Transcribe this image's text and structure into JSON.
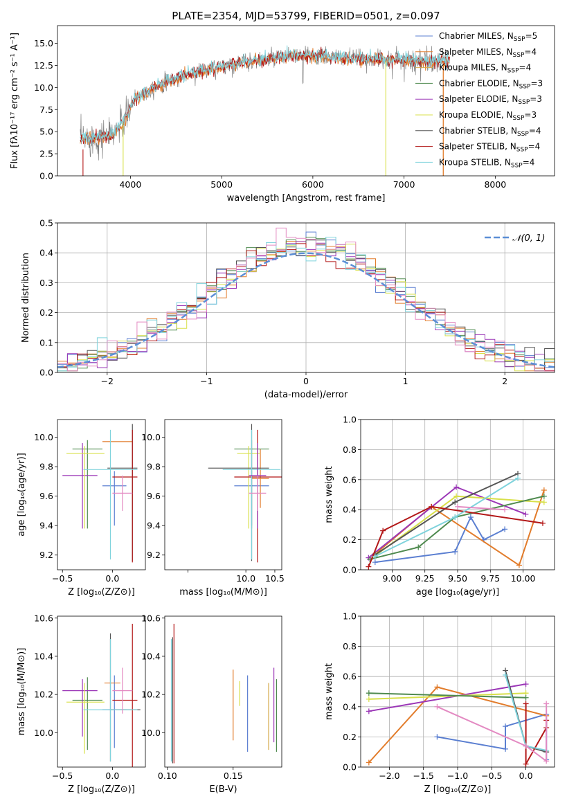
{
  "colors": {
    "Chabrier MILES": "#5b7fd1",
    "Salpeter MILES": "#e27c2b",
    "Kroupa MILES": "#d4a84a",
    "Chabrier ELODIE": "#4f8a4f",
    "Salpeter ELODIE": "#9b37b7",
    "Kroupa ELODIE": "#d8e04a",
    "Chabrier STELIB": "#555555",
    "Salpeter STELIB": "#b31818",
    "Kroupa STELIB": "#7fd3dc",
    "pink": "#e38ac2",
    "normal": "#5b8ed6",
    "grid": "#b0b0b0"
  },
  "chart_data": [
    {
      "id": "spectrum",
      "type": "line",
      "title": "PLATE=2354, MJD=53799, FIBERID=0501, z=0.097",
      "xlabel": "wavelength [Angstrom, rest frame]",
      "ylabel": "Flux [fλ10⁻¹⁷ erg cm⁻² s⁻¹ A⁻¹]",
      "xlim": [
        3200,
        8650
      ],
      "ylim": [
        0,
        17
      ],
      "xticks": [
        4000,
        5000,
        6000,
        7000,
        8000
      ],
      "yticks": [
        0.0,
        2.5,
        5.0,
        7.5,
        10.0,
        12.5,
        15.0
      ],
      "grid": false,
      "legend": "top-right",
      "series": [
        {
          "name": "Chabrier MILES, N_SSP=5"
        },
        {
          "name": "Salpeter MILES, N_SSP=4"
        },
        {
          "name": "Kroupa MILES, N_SSP=4"
        },
        {
          "name": "Chabrier ELODIE, N_SSP=3"
        },
        {
          "name": "Salpeter ELODIE, N_SSP=3"
        },
        {
          "name": "Kroupa ELODIE, N_SSP=3"
        },
        {
          "name": "Chabrier STELIB, N_SSP=4"
        },
        {
          "name": "Salpeter STELIB, N_SSP=4"
        },
        {
          "name": "Kroupa STELIB, N_SSP=4"
        }
      ],
      "continuum": {
        "x": [
          3450,
          3600,
          3800,
          3950,
          4050,
          4300,
          4600,
          4900,
          5200,
          5500,
          5800,
          6100,
          6400,
          6700,
          7000,
          7300,
          7500
        ],
        "y": [
          4.2,
          4.3,
          4.6,
          6.5,
          8.8,
          10.2,
          11.4,
          12.2,
          12.8,
          13.2,
          13.6,
          13.5,
          13.3,
          13.2,
          13.1,
          12.9,
          13.0
        ]
      }
    },
    {
      "id": "residuals",
      "type": "histogram",
      "xlabel": "(data-model)/error",
      "ylabel": "Normed distribution",
      "xlim": [
        -2.5,
        2.5
      ],
      "ylim": [
        0,
        0.5
      ],
      "xticks": [
        -2,
        -1,
        0,
        1,
        2
      ],
      "yticks": [
        0.0,
        0.1,
        0.2,
        0.3,
        0.4,
        0.5
      ],
      "grid": true,
      "legend": "top-right",
      "legend_label": "𝒩(0, 1)",
      "bin_width": 0.1
    },
    {
      "id": "age-vs-Z",
      "type": "errorbar",
      "xlabel": "Z [log₁₀(Z/Z⊙)]",
      "ylabel": "age  [log₁₀(age/yr)]",
      "xlim": [
        -0.55,
        0.33
      ],
      "ylim": [
        9.1,
        10.12
      ],
      "xticks": [
        -0.5,
        0.0
      ],
      "yticks": [
        9.2,
        9.4,
        9.6,
        9.8,
        10.0
      ],
      "points": [
        {
          "model": "Chabrier MILES",
          "x": 0.02,
          "xerr": [
            0.12,
            0.12
          ],
          "y": 9.67,
          "yerr": [
            0.27,
            0.1
          ]
        },
        {
          "model": "Salpeter MILES",
          "x": 0.05,
          "xerr": [
            0.15,
            0.15
          ],
          "y": 9.97,
          "yerr": [
            0.0,
            0.0
          ]
        },
        {
          "model": "Chabrier ELODIE",
          "x": -0.25,
          "xerr": [
            0.15,
            0.15
          ],
          "y": 9.92,
          "yerr": [
            0.54,
            0.06
          ]
        },
        {
          "model": "Salpeter ELODIE",
          "x": -0.3,
          "xerr": [
            0.2,
            0.15
          ],
          "y": 9.74,
          "yerr": [
            0.36,
            0.22
          ]
        },
        {
          "model": "Kroupa ELODIE",
          "x": -0.28,
          "xerr": [
            0.18,
            0.2
          ],
          "y": 9.89,
          "yerr": [
            0.51,
            0.05
          ]
        },
        {
          "model": "Chabrier STELIB",
          "x": 0.2,
          "xerr": [
            0.25,
            0.05
          ],
          "y": 9.79,
          "yerr": [
            0.63,
            0.3
          ]
        },
        {
          "model": "Salpeter STELIB",
          "x": 0.2,
          "xerr": [
            0.2,
            0.05
          ],
          "y": 9.73,
          "yerr": [
            0.58,
            0.32
          ]
        },
        {
          "model": "Kroupa STELIB",
          "x": -0.02,
          "xerr": [
            0.27,
            0.27
          ],
          "y": 9.78,
          "yerr": [
            0.61,
            0.27
          ]
        },
        {
          "model": "pink",
          "x": 0.1,
          "xerr": [
            0.1,
            0.1
          ],
          "y": 9.62,
          "yerr": [
            0.12,
            0.12
          ]
        }
      ]
    },
    {
      "id": "age-vs-mass",
      "type": "errorbar",
      "xlabel": "mass [log₁₀(M/M⊙)]",
      "ylabel": "",
      "xlim": [
        8.6,
        10.62
      ],
      "ylim": [
        9.1,
        10.12
      ],
      "xticks": [
        9.0,
        10.0,
        10.5
      ],
      "xticklabels": [
        "",
        "10.0",
        "10.5"
      ],
      "yticks": [
        9.2,
        9.4,
        9.6,
        9.8,
        10.0
      ],
      "points": [
        {
          "model": "Chabrier MILES",
          "x": 10.1,
          "xerr": [
            0.3,
            0.3
          ],
          "y": 9.67,
          "yerr": [
            0.27,
            0.1
          ]
        },
        {
          "model": "Salpeter MILES",
          "x": 10.25,
          "xerr": [
            0.15,
            0.15
          ],
          "y": 9.72,
          "yerr": [
            0.2,
            0.2
          ]
        },
        {
          "model": "Chabrier ELODIE",
          "x": 10.1,
          "xerr": [
            0.3,
            0.3
          ],
          "y": 9.92,
          "yerr": [
            0.54,
            0.06
          ]
        },
        {
          "model": "Kroupa ELODIE",
          "x": 10.05,
          "xerr": [
            0.2,
            0.2
          ],
          "y": 9.89,
          "yerr": [
            0.51,
            0.05
          ]
        },
        {
          "model": "Chabrier STELIB",
          "x": 10.1,
          "xerr": [
            0.75,
            0.3
          ],
          "y": 9.79,
          "yerr": [
            0.63,
            0.3
          ]
        },
        {
          "model": "Salpeter STELIB",
          "x": 10.2,
          "xerr": [
            0.4,
            0.45
          ],
          "y": 9.73,
          "yerr": [
            0.58,
            0.32
          ]
        },
        {
          "model": "Kroupa STELIB",
          "x": 10.1,
          "xerr": [
            0.5,
            0.5
          ],
          "y": 9.78,
          "yerr": [
            0.61,
            0.27
          ]
        },
        {
          "model": "Salpeter ELODIE",
          "x": 10.2,
          "xerr": [
            0.15,
            0.15
          ],
          "y": 9.74,
          "yerr": [
            0.36,
            0.22
          ]
        },
        {
          "model": "pink",
          "x": 10.2,
          "xerr": [
            0.15,
            0.15
          ],
          "y": 9.62,
          "yerr": [
            0.12,
            0.12
          ]
        }
      ]
    },
    {
      "id": "weight-vs-age",
      "type": "line",
      "xlabel": "age  [log₁₀(age/yr)]",
      "ylabel": "mass weight",
      "xlim": [
        8.76,
        10.24
      ],
      "ylim": [
        0,
        1.0
      ],
      "xticks": [
        9.0,
        9.25,
        9.5,
        9.75,
        10.0
      ],
      "yticks": [
        0.0,
        0.2,
        0.4,
        0.6,
        0.8,
        1.0
      ],
      "grid": true,
      "series": [
        {
          "model": "Chabrier MILES",
          "x": [
            8.87,
            9.48,
            9.6,
            9.7,
            9.86
          ],
          "y": [
            0.05,
            0.12,
            0.35,
            0.2,
            0.27
          ]
        },
        {
          "model": "Salpeter MILES",
          "x": [
            8.85,
            9.3,
            9.97,
            10.16
          ],
          "y": [
            0.09,
            0.42,
            0.03,
            0.53
          ]
        },
        {
          "model": "Salpeter ELODIE",
          "x": [
            8.82,
            9.49,
            10.02
          ],
          "y": [
            0.08,
            0.55,
            0.37
          ]
        },
        {
          "model": "Kroupa ELODIE",
          "x": [
            8.88,
            9.49,
            10.16
          ],
          "y": [
            0.1,
            0.49,
            0.45
          ]
        },
        {
          "model": "Chabrier ELODIE",
          "x": [
            8.83,
            9.2,
            9.48,
            10.16
          ],
          "y": [
            0.07,
            0.15,
            0.35,
            0.49
          ]
        },
        {
          "model": "Chabrier STELIB",
          "x": [
            8.87,
            9.48,
            9.96
          ],
          "y": [
            0.1,
            0.45,
            0.64
          ]
        },
        {
          "model": "Salpeter STELIB",
          "x": [
            8.82,
            8.93,
            9.3,
            10.15
          ],
          "y": [
            0.02,
            0.26,
            0.42,
            0.31
          ]
        },
        {
          "model": "Kroupa STELIB",
          "x": [
            8.87,
            9.48,
            9.96
          ],
          "y": [
            0.09,
            0.35,
            0.61
          ]
        },
        {
          "model": "pink",
          "x": [
            9.5,
            9.86
          ],
          "y": [
            0.42,
            0.4
          ]
        }
      ]
    },
    {
      "id": "mass-vs-Z",
      "type": "errorbar",
      "xlabel": "Z [log₁₀(Z/Z⊙)]",
      "ylabel": "mass [log₁₀(M/M⊙)]",
      "xlim": [
        -0.55,
        0.33
      ],
      "ylim": [
        9.82,
        10.61
      ],
      "xticks": [
        -0.5,
        0.0
      ],
      "yticks": [
        10.0,
        10.2,
        10.4,
        10.6
      ],
      "points": [
        {
          "model": "Chabrier MILES",
          "x": 0.02,
          "xerr": [
            0.12,
            0.12
          ],
          "y": 10.12,
          "yerr": [
            0.2,
            0.18
          ]
        },
        {
          "model": "Salpeter MILES",
          "x": 0.0,
          "xerr": [
            0.08,
            0.08
          ],
          "y": 10.26,
          "yerr": [
            0.0,
            0.0
          ]
        },
        {
          "model": "Chabrier ELODIE",
          "x": -0.25,
          "xerr": [
            0.15,
            0.15
          ],
          "y": 10.17,
          "yerr": [
            0.26,
            0.12
          ]
        },
        {
          "model": "Salpeter ELODIE",
          "x": -0.3,
          "xerr": [
            0.2,
            0.15
          ],
          "y": 10.22,
          "yerr": [
            0.24,
            0.06
          ]
        },
        {
          "model": "Kroupa ELODIE",
          "x": -0.28,
          "xerr": [
            0.18,
            0.2
          ],
          "y": 10.16,
          "yerr": [
            0.27,
            0.1
          ]
        },
        {
          "model": "Chabrier STELIB",
          "x": -0.02,
          "xerr": [
            0.0,
            0.3
          ],
          "y": 10.12,
          "yerr": [
            0.27,
            0.4
          ]
        },
        {
          "model": "Salpeter STELIB",
          "x": 0.2,
          "xerr": [
            0.2,
            0.05
          ],
          "y": 10.17,
          "yerr": [
            0.36,
            0.4
          ]
        },
        {
          "model": "Kroupa STELIB",
          "x": -0.02,
          "xerr": [
            0.27,
            0.27
          ],
          "y": 10.12,
          "yerr": [
            0.27,
            0.37
          ]
        },
        {
          "model": "pink",
          "x": 0.1,
          "xerr": [
            0.1,
            0.1
          ],
          "y": 10.22,
          "yerr": [
            0.12,
            0.12
          ]
        }
      ]
    },
    {
      "id": "mass-vs-ebv",
      "type": "errorbar",
      "xlabel": "E(B-V)",
      "ylabel": "",
      "xlim": [
        0.098,
        0.187
      ],
      "ylim": [
        9.82,
        10.61
      ],
      "xticks": [
        0.1,
        0.15
      ],
      "yticks": [
        10.0,
        10.2,
        10.4,
        10.6
      ],
      "points": [
        {
          "model": "Salpeter STELIB",
          "x": 0.105,
          "y": 10.2,
          "yerr": [
            0.36,
            0.37
          ]
        },
        {
          "model": "Chabrier STELIB",
          "x": 0.104,
          "y": 10.1,
          "yerr": [
            0.26,
            0.4
          ]
        },
        {
          "model": "Kroupa STELIB",
          "x": 0.103,
          "y": 10.12,
          "yerr": [
            0.27,
            0.37
          ]
        },
        {
          "model": "Salpeter MILES",
          "x": 0.15,
          "y": 10.16,
          "yerr": [
            0.2,
            0.17
          ]
        },
        {
          "model": "Kroupa ELODIE",
          "x": 0.155,
          "y": 10.2,
          "yerr": [
            0.06,
            0.07
          ]
        },
        {
          "model": "Chabrier MILES",
          "x": 0.161,
          "y": 10.1,
          "yerr": [
            0.2,
            0.2
          ]
        },
        {
          "model": "Kroupa MILES",
          "x": 0.177,
          "y": 10.08,
          "yerr": [
            0.17,
            0.18
          ]
        },
        {
          "model": "Salpeter ELODIE",
          "x": 0.181,
          "y": 10.2,
          "yerr": [
            0.25,
            0.14
          ]
        },
        {
          "model": "Chabrier ELODIE",
          "x": 0.183,
          "y": 10.07,
          "yerr": [
            0.17,
            0.21
          ]
        }
      ]
    },
    {
      "id": "weight-vs-Z",
      "type": "line",
      "xlabel": "Z [log₁₀(Z/Z⊙)]",
      "ylabel": "mass weight",
      "xlim": [
        -2.42,
        0.42
      ],
      "ylim": [
        0,
        1.0
      ],
      "xticks": [
        -2.0,
        -1.5,
        -1.0,
        -0.5,
        0.0
      ],
      "yticks": [
        0.0,
        0.2,
        0.4,
        0.6,
        0.8,
        1.0
      ],
      "grid": true,
      "series": [
        {
          "model": "Chabrier MILES",
          "x": [
            -1.3,
            -0.3,
            -0.3,
            0.3,
            0.3
          ],
          "y": [
            0.2,
            0.12,
            0.27,
            0.35,
            0.05
          ]
        },
        {
          "model": "Salpeter MILES",
          "x": [
            -2.3,
            -1.3,
            0.3
          ],
          "y": [
            0.03,
            0.53,
            0.34
          ]
        },
        {
          "model": "Salpeter ELODIE",
          "x": [
            -2.3,
            0.0
          ],
          "y": [
            0.37,
            0.55
          ]
        },
        {
          "model": "Kroupa ELODIE",
          "x": [
            -2.3,
            0.0
          ],
          "y": [
            0.45,
            0.49
          ]
        },
        {
          "model": "Chabrier ELODIE",
          "x": [
            -2.3,
            0.0
          ],
          "y": [
            0.49,
            0.46
          ]
        },
        {
          "model": "Chabrier STELIB",
          "x": [
            -0.3,
            0.0,
            0.3
          ],
          "y": [
            0.64,
            0.14,
            0.1
          ]
        },
        {
          "model": "Salpeter STELIB",
          "x": [
            0.0,
            0.0,
            0.3,
            0.3
          ],
          "y": [
            0.42,
            0.02,
            0.26,
            0.31
          ]
        },
        {
          "model": "Kroupa STELIB",
          "x": [
            -0.3,
            0.0,
            0.3
          ],
          "y": [
            0.61,
            0.14,
            0.11
          ]
        },
        {
          "model": "pink",
          "x": [
            -1.3,
            0.0,
            0.3,
            0.3
          ],
          "y": [
            0.4,
            0.14,
            0.04,
            0.42
          ]
        }
      ]
    }
  ]
}
